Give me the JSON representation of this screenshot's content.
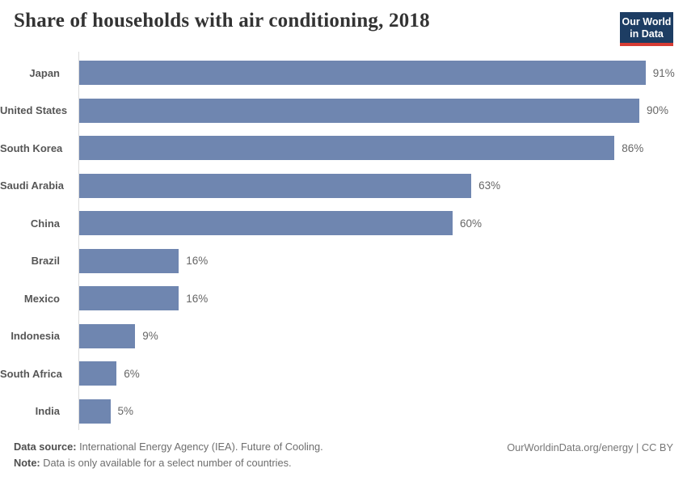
{
  "title": "Share of households with air conditioning, 2018",
  "logo": {
    "line1": "Our World",
    "line2": "in Data"
  },
  "colors": {
    "bar": "#6f86b0",
    "logo_background": "#1d3d63",
    "logo_underline": "#d73c34",
    "axis_line": "#dcdcdc",
    "title_text": "#333333",
    "label_text": "#565656",
    "value_text": "#666666"
  },
  "chart_data": {
    "type": "bar",
    "orientation": "horizontal",
    "title": "Share of households with air conditioning, 2018",
    "xlabel": "",
    "ylabel": "",
    "xlim": [
      0,
      100
    ],
    "grid": false,
    "legend": false,
    "unit": "%",
    "categories": [
      "Japan",
      "United States",
      "South Korea",
      "Saudi Arabia",
      "China",
      "Brazil",
      "Mexico",
      "Indonesia",
      "South Africa",
      "India"
    ],
    "values": [
      91,
      90,
      86,
      63,
      60,
      16,
      16,
      9,
      6,
      5
    ],
    "value_labels": [
      "91%",
      "90%",
      "86%",
      "63%",
      "60%",
      "16%",
      "16%",
      "9%",
      "6%",
      "5%"
    ]
  },
  "footer": {
    "source_label": "Data source:",
    "source_text": " International Energy Agency (IEA). Future of Cooling.",
    "note_label": "Note:",
    "note_text": " Data is only available for a select number of countries.",
    "right_text": "OurWorldinData.org/energy | CC BY"
  }
}
